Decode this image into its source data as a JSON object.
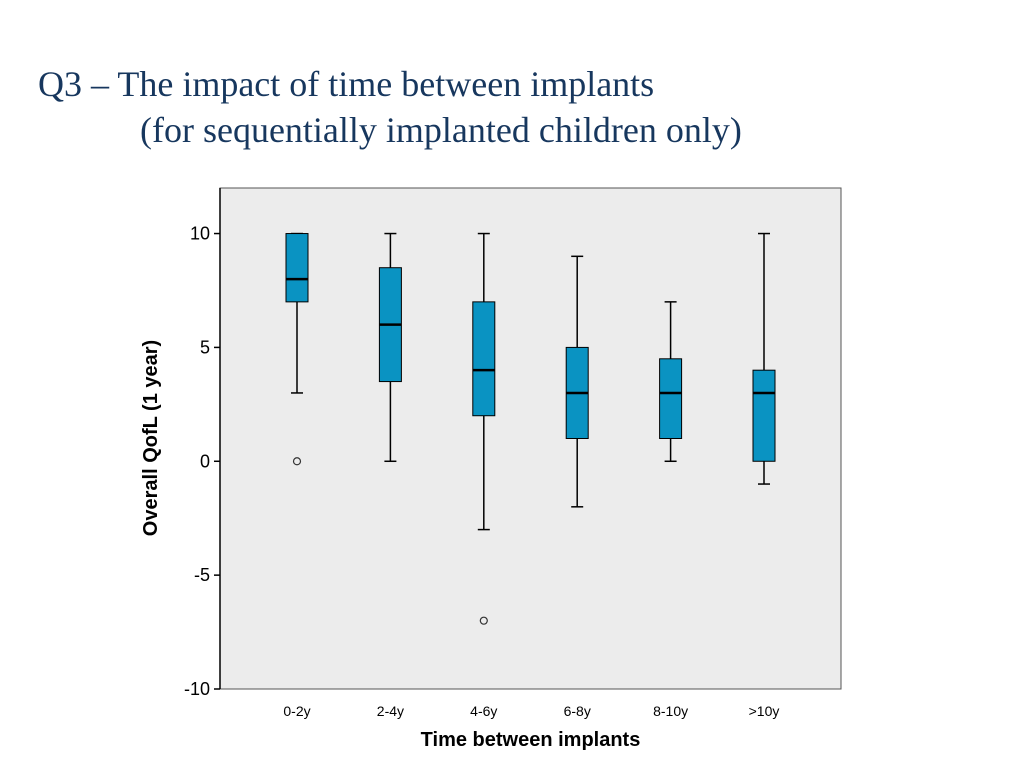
{
  "slide": {
    "title_line_1": "Q3 – The impact of time between implants",
    "title_line_2": "(for sequentially implanted children only)"
  },
  "colors": {
    "title": "#17375e",
    "box_fill": "#0a93c2",
    "plot_background": "#ececec",
    "outline": "#000000"
  },
  "chart_data": {
    "type": "boxplot",
    "xlabel": "Time between implants",
    "ylabel": "Overall QofL (1 year)",
    "ylim": [
      -10,
      12
    ],
    "yticks": [
      -10,
      -5,
      0,
      5,
      10
    ],
    "grid": false,
    "categories": [
      "0-2y",
      "2-4y",
      "4-6y",
      "6-8y",
      "8-10y",
      ">10y"
    ],
    "boxes": [
      {
        "category": "0-2y",
        "whisker_low": 3,
        "q1": 7,
        "median": 8,
        "q3": 10,
        "whisker_high": 10,
        "outliers": [
          0
        ]
      },
      {
        "category": "2-4y",
        "whisker_low": 0,
        "q1": 3.5,
        "median": 6,
        "q3": 8.5,
        "whisker_high": 10,
        "outliers": []
      },
      {
        "category": "4-6y",
        "whisker_low": -3,
        "q1": 2,
        "median": 4,
        "q3": 7,
        "whisker_high": 10,
        "outliers": [
          -7
        ]
      },
      {
        "category": "6-8y",
        "whisker_low": -2,
        "q1": 1,
        "median": 3,
        "q3": 5,
        "whisker_high": 9,
        "outliers": []
      },
      {
        "category": "8-10y",
        "whisker_low": 0,
        "q1": 1,
        "median": 3,
        "q3": 4.5,
        "whisker_high": 7,
        "outliers": []
      },
      {
        "category": ">10y",
        "whisker_low": -1,
        "q1": 0,
        "median": 3,
        "q3": 4,
        "whisker_high": 10,
        "outliers": []
      }
    ]
  }
}
